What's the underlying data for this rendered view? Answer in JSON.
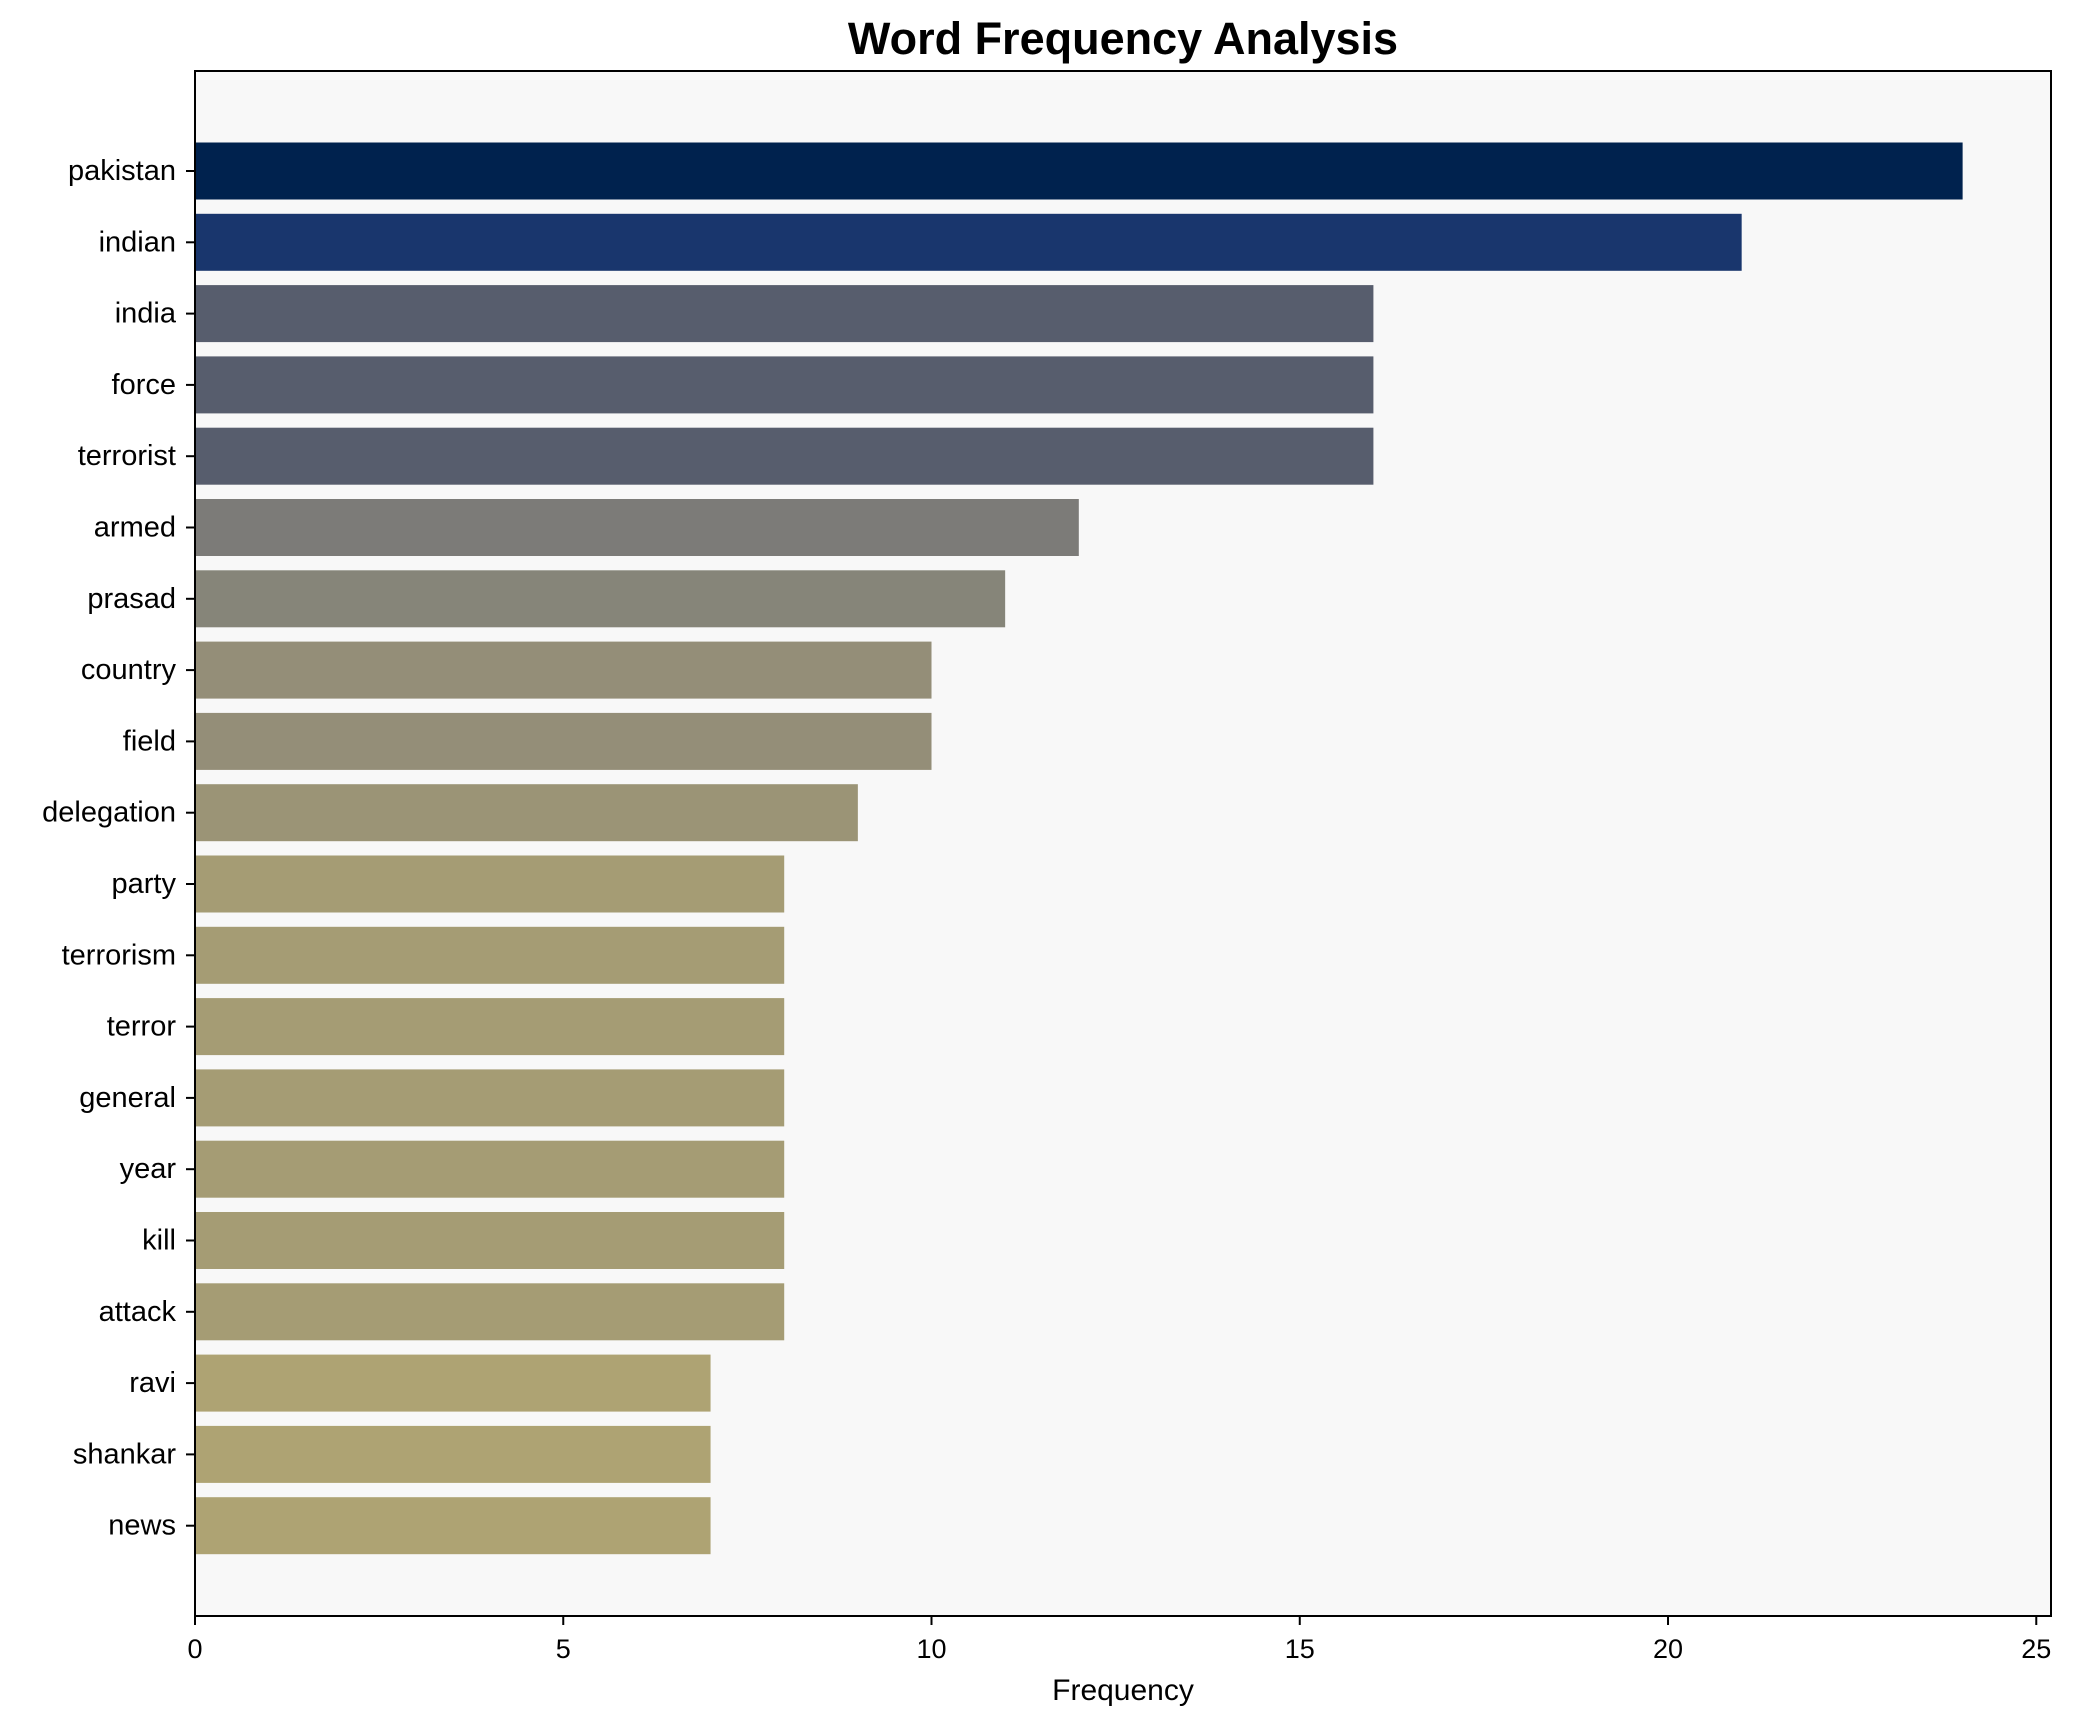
{
  "chart_data": {
    "type": "bar",
    "orientation": "horizontal",
    "title": "Word Frequency Analysis",
    "xlabel": "Frequency",
    "ylabel": "",
    "xlim": [
      0,
      25.2
    ],
    "xticks": [
      0,
      5,
      10,
      15,
      20,
      25
    ],
    "grid": false,
    "legend": "none",
    "categories": [
      "pakistan",
      "indian",
      "india",
      "force",
      "terrorist",
      "armed",
      "prasad",
      "country",
      "field",
      "delegation",
      "party",
      "terrorism",
      "terror",
      "general",
      "year",
      "kill",
      "attack",
      "ravi",
      "shankar",
      "news"
    ],
    "values": [
      24,
      21,
      16,
      16,
      16,
      12,
      11,
      10,
      10,
      9,
      8,
      8,
      8,
      8,
      8,
      8,
      8,
      7,
      7,
      7
    ],
    "colors": [
      "#00224e",
      "#19366d",
      "#575d6d",
      "#575d6d",
      "#575d6d",
      "#7c7b78",
      "#868579",
      "#948e78",
      "#948e78",
      "#9b9476",
      "#a59c74",
      "#a59c74",
      "#a59c74",
      "#a59c74",
      "#a59c74",
      "#a59c74",
      "#a59c74",
      "#aea373",
      "#aea373",
      "#aea373"
    ],
    "background": "#f8f8f8"
  }
}
